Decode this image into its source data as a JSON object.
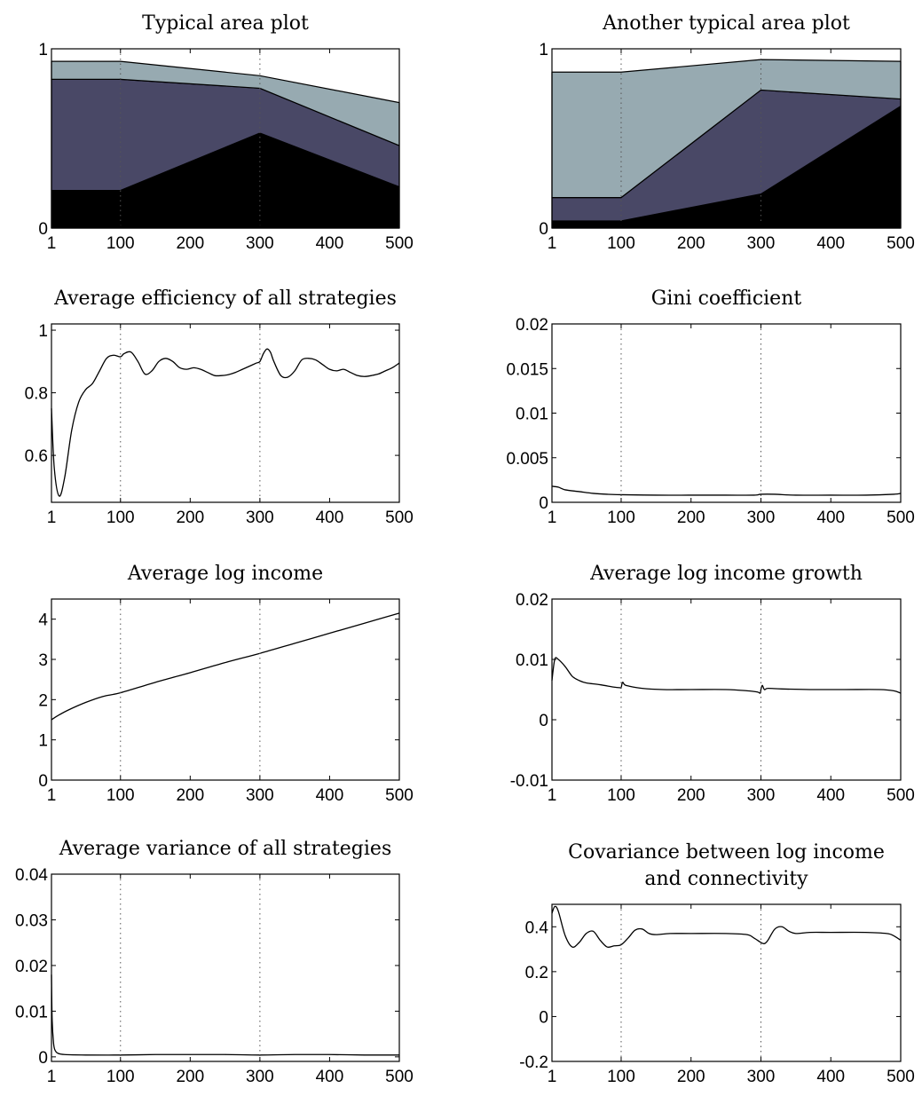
{
  "chart_data": [
    {
      "type": "area",
      "title": "Typical area plot",
      "title_lines": [
        "Typical area plot"
      ],
      "xlim": [
        1,
        500
      ],
      "ylim": [
        0,
        1
      ],
      "xticks": [
        1,
        100,
        200,
        300,
        400,
        500
      ],
      "yticks": [
        0,
        1
      ],
      "ytick_labels": [
        "0",
        "1"
      ],
      "vlines": [
        100,
        300
      ],
      "x": [
        1,
        100,
        300,
        500
      ],
      "series": [
        {
          "values": [
            0.21,
            0.21,
            0.53,
            0.23
          ],
          "color": "#000000"
        },
        {
          "values": [
            0.62,
            0.62,
            0.25,
            0.23
          ],
          "color": "#494866"
        },
        {
          "values": [
            0.1,
            0.1,
            0.07,
            0.24
          ],
          "color": "#97aab1"
        }
      ]
    },
    {
      "type": "area",
      "title": "Another typical area plot",
      "title_lines": [
        "Another typical area plot"
      ],
      "xlim": [
        1,
        500
      ],
      "ylim": [
        0,
        1
      ],
      "xticks": [
        1,
        100,
        200,
        300,
        400,
        500
      ],
      "yticks": [
        0,
        1
      ],
      "ytick_labels": [
        "0",
        "1"
      ],
      "vlines": [
        100,
        300
      ],
      "x": [
        1,
        100,
        300,
        500
      ],
      "series": [
        {
          "values": [
            0.04,
            0.04,
            0.19,
            0.68
          ],
          "color": "#000000"
        },
        {
          "values": [
            0.13,
            0.13,
            0.58,
            0.04
          ],
          "color": "#494866"
        },
        {
          "values": [
            0.7,
            0.7,
            0.17,
            0.21
          ],
          "color": "#97aab1"
        }
      ]
    },
    {
      "type": "line",
      "title": "Average efficiency of all strategies",
      "title_lines": [
        "Average efficiency of all strategies"
      ],
      "xlim": [
        1,
        500
      ],
      "ylim": [
        0.45,
        1.02
      ],
      "xticks": [
        1,
        100,
        200,
        300,
        400,
        500
      ],
      "yticks": [
        0.6,
        0.8,
        1
      ],
      "ytick_labels": [
        "0.6",
        "0.8",
        "1"
      ],
      "vlines": [
        100,
        300
      ],
      "series": [
        {
          "x": [
            1,
            5,
            12,
            20,
            30,
            40,
            50,
            60,
            70,
            80,
            90,
            100,
            105,
            115,
            125,
            135,
            145,
            155,
            165,
            175,
            185,
            195,
            205,
            215,
            225,
            235,
            245,
            255,
            265,
            275,
            285,
            295,
            300,
            305,
            310,
            315,
            320,
            330,
            340,
            350,
            360,
            370,
            380,
            390,
            400,
            410,
            420,
            430,
            440,
            450,
            460,
            470,
            480,
            490,
            500
          ],
          "y": [
            0.75,
            0.56,
            0.47,
            0.53,
            0.68,
            0.77,
            0.81,
            0.83,
            0.87,
            0.91,
            0.92,
            0.915,
            0.925,
            0.93,
            0.9,
            0.86,
            0.87,
            0.9,
            0.91,
            0.9,
            0.88,
            0.875,
            0.88,
            0.875,
            0.865,
            0.855,
            0.855,
            0.858,
            0.865,
            0.875,
            0.885,
            0.895,
            0.9,
            0.925,
            0.94,
            0.93,
            0.9,
            0.855,
            0.85,
            0.87,
            0.905,
            0.91,
            0.905,
            0.89,
            0.875,
            0.87,
            0.875,
            0.865,
            0.855,
            0.852,
            0.855,
            0.86,
            0.87,
            0.88,
            0.895
          ]
        }
      ]
    },
    {
      "type": "line",
      "title": "Gini coefficient",
      "title_lines": [
        "Gini coefficient"
      ],
      "xlim": [
        1,
        500
      ],
      "ylim": [
        0,
        0.02
      ],
      "xticks": [
        1,
        100,
        200,
        300,
        400,
        500
      ],
      "yticks": [
        0,
        0.005,
        0.01,
        0.015,
        0.02
      ],
      "ytick_labels": [
        "0",
        "0.005",
        "0.01",
        "0.015",
        "0.02"
      ],
      "vlines": [
        100,
        300
      ],
      "series": [
        {
          "x": [
            1,
            10,
            20,
            40,
            60,
            80,
            100,
            150,
            200,
            250,
            290,
            300,
            320,
            350,
            400,
            450,
            490,
            500
          ],
          "y": [
            0.0018,
            0.0017,
            0.0014,
            0.0012,
            0.001,
            0.0009,
            0.00085,
            0.0008,
            0.0008,
            0.0008,
            0.0008,
            0.0009,
            0.0009,
            0.0008,
            0.0008,
            0.0008,
            0.0009,
            0.001
          ]
        }
      ]
    },
    {
      "type": "line",
      "title": "Average log income",
      "title_lines": [
        "Average log income"
      ],
      "xlim": [
        1,
        500
      ],
      "ylim": [
        0,
        4.5
      ],
      "xticks": [
        1,
        100,
        200,
        300,
        400,
        500
      ],
      "yticks": [
        0,
        1,
        2,
        3,
        4
      ],
      "ytick_labels": [
        "0",
        "1",
        "2",
        "3",
        "4"
      ],
      "vlines": [
        100,
        300
      ],
      "series": [
        {
          "x": [
            1,
            10,
            25,
            50,
            75,
            100,
            150,
            200,
            250,
            300,
            350,
            400,
            450,
            500
          ],
          "y": [
            1.5,
            1.6,
            1.74,
            1.93,
            2.08,
            2.17,
            2.43,
            2.67,
            2.92,
            3.15,
            3.4,
            3.65,
            3.9,
            4.15
          ]
        }
      ]
    },
    {
      "type": "line",
      "title": "Average log income growth",
      "title_lines": [
        "Average log income growth"
      ],
      "xlim": [
        1,
        500
      ],
      "ylim": [
        -0.01,
        0.02
      ],
      "xticks": [
        1,
        100,
        200,
        300,
        400,
        500
      ],
      "yticks": [
        -0.01,
        0,
        0.01,
        0.02
      ],
      "ytick_labels": [
        "-0.01",
        "0",
        "0.01",
        "0.02"
      ],
      "vlines": [
        100,
        300
      ],
      "series": [
        {
          "x": [
            1,
            5,
            10,
            20,
            30,
            40,
            50,
            70,
            90,
            99,
            100,
            102,
            105,
            110,
            130,
            160,
            200,
            250,
            280,
            295,
            299,
            300,
            302,
            305,
            310,
            330,
            370,
            420,
            470,
            490,
            500
          ],
          "y": [
            0.0065,
            0.01,
            0.01,
            0.0088,
            0.0072,
            0.0065,
            0.0061,
            0.0058,
            0.0054,
            0.0053,
            0.0053,
            0.0062,
            0.0058,
            0.0056,
            0.0052,
            0.005,
            0.005,
            0.005,
            0.0048,
            0.0046,
            0.0044,
            0.005,
            0.0057,
            0.005,
            0.0052,
            0.0051,
            0.005,
            0.005,
            0.005,
            0.0048,
            0.0044
          ]
        }
      ]
    },
    {
      "type": "line",
      "title": "Average variance of all strategies",
      "title_lines": [
        "Average variance of all strategies"
      ],
      "xlim": [
        1,
        500
      ],
      "ylim": [
        -0.001,
        0.04
      ],
      "xticks": [
        1,
        100,
        200,
        300,
        400,
        500
      ],
      "yticks": [
        0,
        0.01,
        0.02,
        0.03,
        0.04
      ],
      "ytick_labels": [
        "0",
        "0.01",
        "0.02",
        "0.03",
        "0.04"
      ],
      "vlines": [
        100,
        300
      ],
      "series": [
        {
          "x": [
            1,
            2,
            4,
            6,
            10,
            20,
            50,
            100,
            150,
            200,
            250,
            300,
            350,
            400,
            450,
            500
          ],
          "y": [
            0.018,
            0.008,
            0.003,
            0.0015,
            0.0008,
            0.0005,
            0.0004,
            0.0004,
            0.0005,
            0.0005,
            0.0005,
            0.0004,
            0.0005,
            0.0005,
            0.0004,
            0.0004
          ]
        }
      ]
    },
    {
      "type": "line",
      "title": "Covariance between log income and connectivity",
      "title_lines": [
        "Covariance between log income",
        "and connectivity"
      ],
      "xlim": [
        1,
        500
      ],
      "ylim": [
        -0.2,
        0.5
      ],
      "xticks": [
        1,
        100,
        200,
        300,
        400,
        500
      ],
      "yticks": [
        -0.2,
        0,
        0.2,
        0.4
      ],
      "ytick_labels": [
        "-0.2",
        "0",
        "0.2",
        "0.4"
      ],
      "vlines": [
        100,
        300
      ],
      "series": [
        {
          "x": [
            1,
            5,
            10,
            20,
            30,
            40,
            50,
            60,
            70,
            80,
            90,
            100,
            110,
            120,
            130,
            140,
            150,
            170,
            200,
            250,
            280,
            290,
            300,
            305,
            310,
            320,
            330,
            340,
            350,
            370,
            400,
            450,
            480,
            490,
            500
          ],
          "y": [
            0.46,
            0.49,
            0.47,
            0.36,
            0.31,
            0.33,
            0.37,
            0.38,
            0.34,
            0.31,
            0.315,
            0.32,
            0.35,
            0.385,
            0.39,
            0.37,
            0.365,
            0.37,
            0.37,
            0.37,
            0.365,
            0.35,
            0.33,
            0.325,
            0.34,
            0.39,
            0.4,
            0.38,
            0.37,
            0.375,
            0.375,
            0.375,
            0.37,
            0.36,
            0.34
          ]
        }
      ]
    }
  ]
}
